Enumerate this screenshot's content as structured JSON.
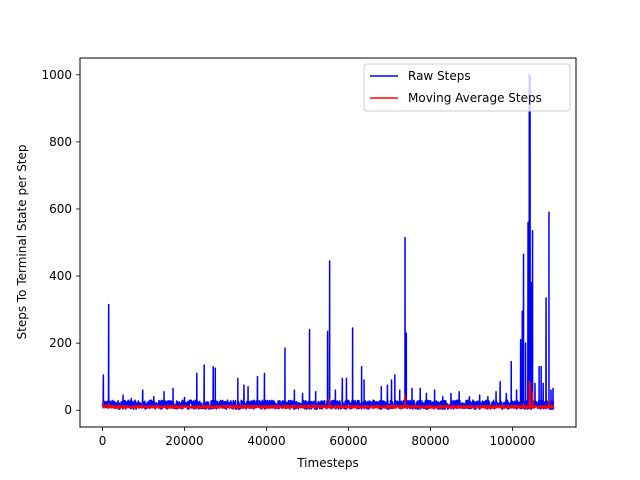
{
  "chart_data": {
    "type": "line",
    "title": "",
    "xlabel": "Timesteps",
    "ylabel": "Steps To Terminal State per Step",
    "xlim": [
      -5500,
      115500
    ],
    "ylim": [
      -50,
      1050
    ],
    "x_ticks": [
      0,
      20000,
      40000,
      60000,
      80000,
      100000
    ],
    "y_ticks": [
      0,
      200,
      400,
      600,
      800,
      1000
    ],
    "grid": false,
    "legend_position": "top-right",
    "baseline_raw": [
      3,
      30
    ],
    "baseline_avg": [
      6,
      14
    ],
    "series": [
      {
        "name": "Raw Steps",
        "color": "#0000ff",
        "peaks": [
          [
            200,
            105
          ],
          [
            1500,
            315
          ],
          [
            5000,
            45
          ],
          [
            7000,
            35
          ],
          [
            9800,
            60
          ],
          [
            12500,
            40
          ],
          [
            15000,
            55
          ],
          [
            17200,
            65
          ],
          [
            20000,
            38
          ],
          [
            23000,
            110
          ],
          [
            24800,
            135
          ],
          [
            27000,
            130
          ],
          [
            27500,
            125
          ],
          [
            30500,
            30
          ],
          [
            33000,
            95
          ],
          [
            34500,
            75
          ],
          [
            35500,
            70
          ],
          [
            37800,
            100
          ],
          [
            39500,
            110
          ],
          [
            44500,
            185
          ],
          [
            46800,
            60
          ],
          [
            48800,
            50
          ],
          [
            50500,
            240
          ],
          [
            52000,
            55
          ],
          [
            54900,
            235
          ],
          [
            55400,
            445
          ],
          [
            56800,
            60
          ],
          [
            58500,
            95
          ],
          [
            59500,
            95
          ],
          [
            61000,
            245
          ],
          [
            63200,
            130
          ],
          [
            63800,
            90
          ],
          [
            66000,
            30
          ],
          [
            68000,
            70
          ],
          [
            69500,
            75
          ],
          [
            70500,
            90
          ],
          [
            71300,
            105
          ],
          [
            72500,
            60
          ],
          [
            73800,
            515
          ],
          [
            74100,
            230
          ],
          [
            75500,
            65
          ],
          [
            77500,
            65
          ],
          [
            79000,
            50
          ],
          [
            81000,
            60
          ],
          [
            83000,
            40
          ],
          [
            85000,
            50
          ],
          [
            87000,
            55
          ],
          [
            89500,
            40
          ],
          [
            92000,
            45
          ],
          [
            94000,
            40
          ],
          [
            96000,
            55
          ],
          [
            97000,
            85
          ],
          [
            98500,
            50
          ],
          [
            99700,
            145
          ],
          [
            101000,
            60
          ],
          [
            102000,
            210
          ],
          [
            102400,
            295
          ],
          [
            102700,
            465
          ],
          [
            103200,
            200
          ],
          [
            103800,
            560
          ],
          [
            104100,
            1000
          ],
          [
            104300,
            995
          ],
          [
            104600,
            380
          ],
          [
            104900,
            535
          ],
          [
            105500,
            80
          ],
          [
            106500,
            130
          ],
          [
            107000,
            130
          ],
          [
            107500,
            80
          ],
          [
            108200,
            335
          ],
          [
            108900,
            590
          ],
          [
            109400,
            60
          ],
          [
            109900,
            65
          ]
        ]
      },
      {
        "name": "Moving Average Steps",
        "color": "#ff0000",
        "peaks": [
          [
            200,
            20
          ],
          [
            1500,
            20
          ],
          [
            55400,
            35
          ],
          [
            73800,
            45
          ],
          [
            102700,
            20
          ],
          [
            104100,
            85
          ],
          [
            104300,
            80
          ],
          [
            104900,
            55
          ],
          [
            108900,
            30
          ]
        ]
      }
    ]
  }
}
